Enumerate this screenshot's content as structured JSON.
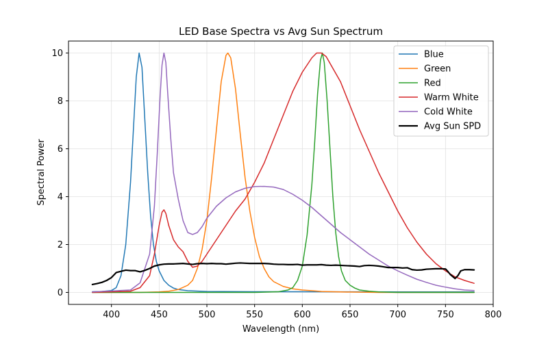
{
  "chart_data": {
    "type": "line",
    "title": "LED Base Spectra vs Avg Sun Spectrum",
    "xlabel": "Wavelength (nm)",
    "ylabel": "Spectral Power",
    "xlim": [
      355,
      800
    ],
    "ylim": [
      -0.5,
      10.5
    ],
    "xticks": [
      400,
      450,
      500,
      550,
      600,
      650,
      700,
      750,
      800
    ],
    "yticks": [
      0,
      2,
      4,
      6,
      8,
      10
    ],
    "grid": true,
    "legend_position": "top-right",
    "series": [
      {
        "name": "Blue",
        "color": "#1f77b4",
        "width": 1.5,
        "points": [
          [
            380,
            0.03
          ],
          [
            390,
            0.04
          ],
          [
            400,
            0.08
          ],
          [
            405,
            0.2
          ],
          [
            410,
            0.7
          ],
          [
            415,
            2.0
          ],
          [
            420,
            4.6
          ],
          [
            423,
            6.8
          ],
          [
            426,
            9.0
          ],
          [
            429,
            10.0
          ],
          [
            432,
            9.4
          ],
          [
            435,
            7.2
          ],
          [
            438,
            5.0
          ],
          [
            441,
            3.2
          ],
          [
            444,
            2.0
          ],
          [
            447,
            1.3
          ],
          [
            450,
            0.9
          ],
          [
            455,
            0.5
          ],
          [
            460,
            0.3
          ],
          [
            465,
            0.18
          ],
          [
            470,
            0.12
          ],
          [
            480,
            0.07
          ],
          [
            500,
            0.04
          ],
          [
            550,
            0.03
          ],
          [
            600,
            0.03
          ],
          [
            700,
            0.02
          ],
          [
            780,
            0.02
          ]
        ]
      },
      {
        "name": "Green",
        "color": "#ff7f0e",
        "width": 1.5,
        "points": [
          [
            380,
            0.0
          ],
          [
            430,
            0.0
          ],
          [
            450,
            0.02
          ],
          [
            460,
            0.05
          ],
          [
            470,
            0.12
          ],
          [
            480,
            0.3
          ],
          [
            485,
            0.5
          ],
          [
            490,
            1.0
          ],
          [
            495,
            1.8
          ],
          [
            500,
            3.0
          ],
          [
            505,
            4.8
          ],
          [
            510,
            6.8
          ],
          [
            515,
            8.8
          ],
          [
            520,
            9.9
          ],
          [
            522,
            10.0
          ],
          [
            525,
            9.8
          ],
          [
            530,
            8.5
          ],
          [
            535,
            6.6
          ],
          [
            540,
            4.8
          ],
          [
            545,
            3.4
          ],
          [
            550,
            2.3
          ],
          [
            555,
            1.5
          ],
          [
            560,
            1.0
          ],
          [
            565,
            0.65
          ],
          [
            570,
            0.45
          ],
          [
            580,
            0.25
          ],
          [
            590,
            0.15
          ],
          [
            600,
            0.1
          ],
          [
            610,
            0.07
          ],
          [
            620,
            0.04
          ],
          [
            640,
            0.02
          ],
          [
            680,
            0.0
          ],
          [
            780,
            0.0
          ]
        ]
      },
      {
        "name": "Red",
        "color": "#2ca02c",
        "width": 1.5,
        "points": [
          [
            380,
            0.0
          ],
          [
            550,
            0.0
          ],
          [
            575,
            0.03
          ],
          [
            585,
            0.1
          ],
          [
            590,
            0.2
          ],
          [
            595,
            0.5
          ],
          [
            600,
            1.1
          ],
          [
            605,
            2.4
          ],
          [
            610,
            4.5
          ],
          [
            613,
            6.3
          ],
          [
            616,
            8.3
          ],
          [
            619,
            9.7
          ],
          [
            621,
            10.0
          ],
          [
            623,
            9.6
          ],
          [
            626,
            8.0
          ],
          [
            629,
            6.0
          ],
          [
            632,
            4.0
          ],
          [
            635,
            2.5
          ],
          [
            638,
            1.5
          ],
          [
            641,
            0.9
          ],
          [
            645,
            0.5
          ],
          [
            650,
            0.3
          ],
          [
            655,
            0.18
          ],
          [
            660,
            0.1
          ],
          [
            670,
            0.05
          ],
          [
            680,
            0.02
          ],
          [
            700,
            0.0
          ],
          [
            780,
            0.0
          ]
        ]
      },
      {
        "name": "Warm White",
        "color": "#d62728",
        "width": 1.5,
        "points": [
          [
            380,
            0.0
          ],
          [
            420,
            0.05
          ],
          [
            430,
            0.2
          ],
          [
            440,
            0.7
          ],
          [
            445,
            1.6
          ],
          [
            450,
            2.8
          ],
          [
            453,
            3.35
          ],
          [
            455,
            3.45
          ],
          [
            457,
            3.3
          ],
          [
            460,
            2.8
          ],
          [
            465,
            2.2
          ],
          [
            470,
            1.9
          ],
          [
            475,
            1.7
          ],
          [
            480,
            1.3
          ],
          [
            485,
            1.05
          ],
          [
            490,
            1.1
          ],
          [
            495,
            1.3
          ],
          [
            500,
            1.6
          ],
          [
            510,
            2.2
          ],
          [
            520,
            2.8
          ],
          [
            530,
            3.4
          ],
          [
            540,
            3.9
          ],
          [
            550,
            4.6
          ],
          [
            560,
            5.4
          ],
          [
            570,
            6.4
          ],
          [
            580,
            7.4
          ],
          [
            590,
            8.4
          ],
          [
            600,
            9.2
          ],
          [
            610,
            9.8
          ],
          [
            615,
            10.0
          ],
          [
            620,
            10.0
          ],
          [
            625,
            9.85
          ],
          [
            630,
            9.5
          ],
          [
            640,
            8.8
          ],
          [
            650,
            7.8
          ],
          [
            660,
            6.8
          ],
          [
            670,
            5.9
          ],
          [
            680,
            5.0
          ],
          [
            690,
            4.2
          ],
          [
            700,
            3.4
          ],
          [
            710,
            2.7
          ],
          [
            720,
            2.1
          ],
          [
            730,
            1.6
          ],
          [
            740,
            1.2
          ],
          [
            750,
            0.9
          ],
          [
            760,
            0.65
          ],
          [
            770,
            0.5
          ],
          [
            780,
            0.38
          ]
        ]
      },
      {
        "name": "Cold White",
        "color": "#9467bd",
        "width": 1.5,
        "points": [
          [
            380,
            0.02
          ],
          [
            420,
            0.1
          ],
          [
            430,
            0.4
          ],
          [
            440,
            1.6
          ],
          [
            445,
            3.6
          ],
          [
            448,
            5.8
          ],
          [
            451,
            8.2
          ],
          [
            453,
            9.5
          ],
          [
            455,
            10.0
          ],
          [
            457,
            9.6
          ],
          [
            459,
            8.3
          ],
          [
            462,
            6.5
          ],
          [
            465,
            5.0
          ],
          [
            470,
            3.9
          ],
          [
            475,
            3.0
          ],
          [
            480,
            2.5
          ],
          [
            485,
            2.42
          ],
          [
            490,
            2.5
          ],
          [
            495,
            2.75
          ],
          [
            500,
            3.1
          ],
          [
            510,
            3.6
          ],
          [
            520,
            3.95
          ],
          [
            530,
            4.2
          ],
          [
            540,
            4.35
          ],
          [
            550,
            4.42
          ],
          [
            560,
            4.43
          ],
          [
            570,
            4.4
          ],
          [
            580,
            4.3
          ],
          [
            590,
            4.1
          ],
          [
            600,
            3.85
          ],
          [
            610,
            3.55
          ],
          [
            620,
            3.2
          ],
          [
            630,
            2.85
          ],
          [
            640,
            2.5
          ],
          [
            650,
            2.2
          ],
          [
            660,
            1.9
          ],
          [
            670,
            1.6
          ],
          [
            680,
            1.35
          ],
          [
            690,
            1.1
          ],
          [
            700,
            0.9
          ],
          [
            710,
            0.72
          ],
          [
            720,
            0.55
          ],
          [
            730,
            0.42
          ],
          [
            740,
            0.3
          ],
          [
            750,
            0.22
          ],
          [
            760,
            0.15
          ],
          [
            770,
            0.1
          ],
          [
            780,
            0.08
          ]
        ]
      },
      {
        "name": "Avg Sun SPD",
        "color": "#000000",
        "width": 2.2,
        "points": [
          [
            380,
            0.33
          ],
          [
            385,
            0.37
          ],
          [
            390,
            0.42
          ],
          [
            395,
            0.5
          ],
          [
            400,
            0.62
          ],
          [
            405,
            0.83
          ],
          [
            410,
            0.88
          ],
          [
            415,
            0.93
          ],
          [
            420,
            0.91
          ],
          [
            425,
            0.91
          ],
          [
            430,
            0.86
          ],
          [
            435,
            0.92
          ],
          [
            440,
            1.0
          ],
          [
            445,
            1.1
          ],
          [
            450,
            1.15
          ],
          [
            455,
            1.18
          ],
          [
            460,
            1.19
          ],
          [
            465,
            1.19
          ],
          [
            470,
            1.2
          ],
          [
            475,
            1.21
          ],
          [
            480,
            1.19
          ],
          [
            485,
            1.17
          ],
          [
            490,
            1.2
          ],
          [
            495,
            1.21
          ],
          [
            500,
            1.2
          ],
          [
            505,
            1.21
          ],
          [
            510,
            1.2
          ],
          [
            515,
            1.2
          ],
          [
            520,
            1.18
          ],
          [
            525,
            1.2
          ],
          [
            530,
            1.22
          ],
          [
            535,
            1.23
          ],
          [
            540,
            1.22
          ],
          [
            545,
            1.21
          ],
          [
            550,
            1.21
          ],
          [
            555,
            1.21
          ],
          [
            560,
            1.21
          ],
          [
            565,
            1.2
          ],
          [
            570,
            1.18
          ],
          [
            575,
            1.17
          ],
          [
            580,
            1.17
          ],
          [
            585,
            1.16
          ],
          [
            590,
            1.16
          ],
          [
            595,
            1.17
          ],
          [
            600,
            1.14
          ],
          [
            605,
            1.15
          ],
          [
            610,
            1.15
          ],
          [
            615,
            1.15
          ],
          [
            620,
            1.16
          ],
          [
            625,
            1.14
          ],
          [
            630,
            1.13
          ],
          [
            635,
            1.14
          ],
          [
            640,
            1.13
          ],
          [
            645,
            1.12
          ],
          [
            650,
            1.11
          ],
          [
            655,
            1.1
          ],
          [
            660,
            1.08
          ],
          [
            665,
            1.12
          ],
          [
            670,
            1.13
          ],
          [
            675,
            1.12
          ],
          [
            680,
            1.1
          ],
          [
            685,
            1.07
          ],
          [
            690,
            1.04
          ],
          [
            695,
            1.04
          ],
          [
            700,
            1.04
          ],
          [
            705,
            1.02
          ],
          [
            710,
            1.03
          ],
          [
            715,
            0.95
          ],
          [
            720,
            0.93
          ],
          [
            725,
            0.94
          ],
          [
            730,
            0.97
          ],
          [
            735,
            0.98
          ],
          [
            740,
            0.99
          ],
          [
            745,
            0.99
          ],
          [
            750,
            0.98
          ],
          [
            752,
            0.9
          ],
          [
            755,
            0.75
          ],
          [
            758,
            0.65
          ],
          [
            760,
            0.58
          ],
          [
            763,
            0.7
          ],
          [
            766,
            0.9
          ],
          [
            770,
            0.95
          ],
          [
            775,
            0.95
          ],
          [
            780,
            0.94
          ]
        ]
      }
    ]
  }
}
